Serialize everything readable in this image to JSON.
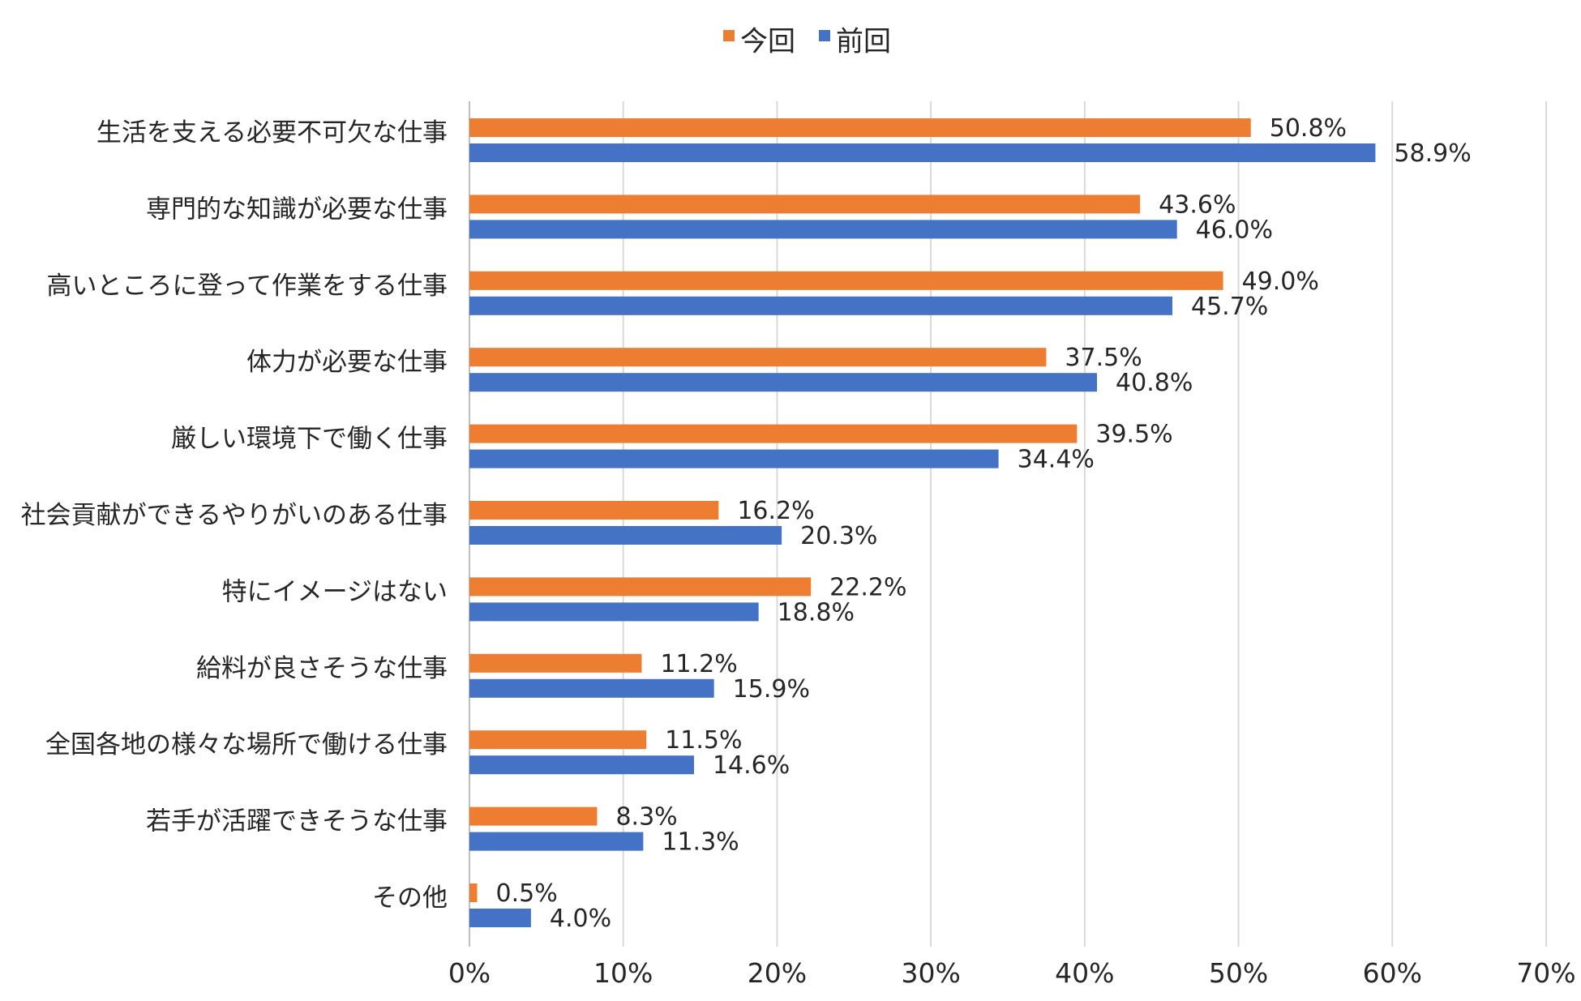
{
  "chart_data": {
    "type": "bar",
    "orientation": "horizontal",
    "categories": [
      "生活を支える必要不可欠な仕事",
      "専門的な知識が必要な仕事",
      "高いところに登って作業をする仕事",
      "体力が必要な仕事",
      "厳しい環境下で働く仕事",
      "社会貢献ができるやりがいのある仕事",
      "特にイメージはない",
      "給料が良さそうな仕事",
      "全国各地の様々な場所で働ける仕事",
      "若手が活躍できそうな仕事",
      "その他"
    ],
    "series": [
      {
        "name": "今回",
        "color": "#ED7D31",
        "values": [
          50.8,
          43.6,
          49.0,
          37.5,
          39.5,
          16.2,
          22.2,
          11.2,
          11.5,
          8.3,
          0.5
        ],
        "labels": [
          "50.8%",
          "43.6%",
          "49.0%",
          "37.5%",
          "39.5%",
          "16.2%",
          "22.2%",
          "11.2%",
          "11.5%",
          "8.3%",
          "0.5%"
        ]
      },
      {
        "name": "前回",
        "color": "#4472C4",
        "values": [
          58.9,
          46.0,
          45.7,
          40.8,
          34.4,
          20.3,
          18.8,
          15.9,
          14.6,
          11.3,
          4.0
        ],
        "labels": [
          "58.9%",
          "46.0%",
          "45.7%",
          "40.8%",
          "34.4%",
          "20.3%",
          "18.8%",
          "15.9%",
          "14.6%",
          "11.3%",
          "4.0%"
        ]
      }
    ],
    "xlim": [
      0,
      70
    ],
    "xticks": [
      0,
      10,
      20,
      30,
      40,
      50,
      60,
      70
    ],
    "xtick_labels": [
      "0%",
      "10%",
      "20%",
      "30%",
      "40%",
      "50%",
      "60%",
      "70%"
    ],
    "grid": "vertical",
    "legend_position": "top-center",
    "title": "",
    "xlabel": "",
    "ylabel": ""
  }
}
